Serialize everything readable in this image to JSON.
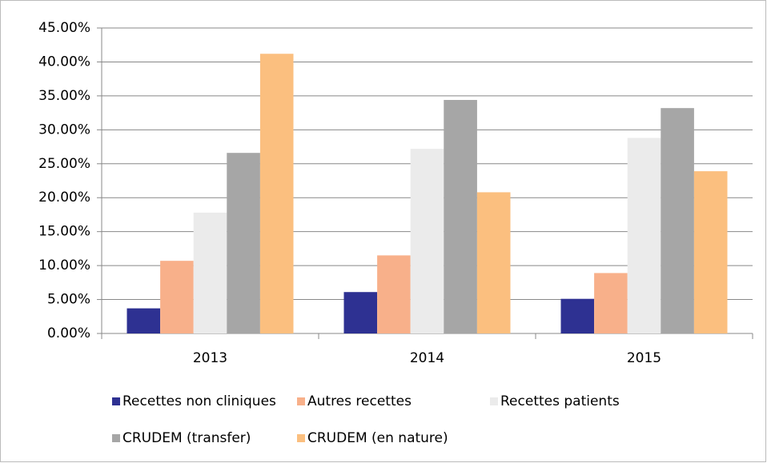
{
  "chart_data": {
    "type": "bar",
    "categories": [
      "2013",
      "2014",
      "2015"
    ],
    "series": [
      {
        "name": "Recettes non cliniques",
        "color": "#2e3192",
        "values": [
          3.7,
          6.1,
          5.1
        ]
      },
      {
        "name": "Autres recettes",
        "color": "#f8b08a",
        "values": [
          10.7,
          11.5,
          8.9
        ]
      },
      {
        "name": "Recettes patients",
        "color": "#ebebeb",
        "values": [
          17.8,
          27.2,
          28.8
        ]
      },
      {
        "name": "CRUDEM (transfer)",
        "color": "#a6a6a6",
        "values": [
          26.6,
          34.4,
          33.2
        ]
      },
      {
        "name": "CRUDEM (en nature)",
        "color": "#fbbf7f",
        "values": [
          41.2,
          20.8,
          23.9
        ]
      }
    ],
    "ylim": [
      0,
      45
    ],
    "yticks": [
      {
        "value": 0,
        "label": "0.00%"
      },
      {
        "value": 5,
        "label": "5.00%"
      },
      {
        "value": 10,
        "label": "10.00%"
      },
      {
        "value": 15,
        "label": "15.00%"
      },
      {
        "value": 20,
        "label": "20.00%"
      },
      {
        "value": 25,
        "label": "25.00%"
      },
      {
        "value": 30,
        "label": "30.00%"
      },
      {
        "value": 35,
        "label": "35.00%"
      },
      {
        "value": 40,
        "label": "40.00%"
      },
      {
        "value": 45,
        "label": "45.00%"
      }
    ],
    "grid": true,
    "legend": "bottom"
  }
}
